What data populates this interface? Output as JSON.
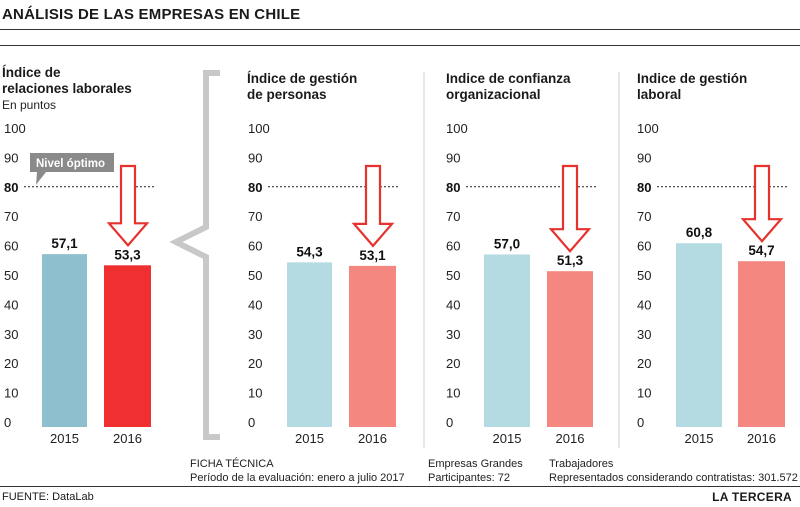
{
  "title": "ANÁLISIS DE LAS EMPRESAS EN CHILE",
  "optimal_label": "Nivel óptimo",
  "optimal_value": 80,
  "colors": {
    "bar_2015_main": "#8dbfce",
    "bar_2016_main": "#f03030",
    "bar_2015": "#b4dae2",
    "bar_2016": "#f48880",
    "arrow": "#e6322d",
    "arrow_fill": "#ffffff",
    "bracket": "#c8c8c8"
  },
  "chart_data": [
    {
      "type": "bar",
      "title_lines": [
        "Índice de",
        "relaciones laborales"
      ],
      "subtitle": "En puntos",
      "categories": [
        "2015",
        "2016"
      ],
      "values": [
        57.1,
        53.3
      ],
      "value_labels": [
        "57,1",
        "53,3"
      ],
      "yticks": [
        "100",
        "90",
        "80",
        "70",
        "60",
        "50",
        "40",
        "30",
        "20",
        "10",
        "0"
      ],
      "ylim": [
        0,
        100
      ]
    },
    {
      "type": "bar",
      "title_lines": [
        "Índice de gestión",
        "de personas"
      ],
      "categories": [
        "2015",
        "2016"
      ],
      "values": [
        54.3,
        53.1
      ],
      "value_labels": [
        "54,3",
        "53,1"
      ],
      "yticks": [
        "100",
        "90",
        "80",
        "70",
        "60",
        "50",
        "40",
        "30",
        "20",
        "10",
        "0"
      ],
      "ylim": [
        0,
        100
      ]
    },
    {
      "type": "bar",
      "title_lines": [
        "Indice de confianza",
        "organizacional"
      ],
      "categories": [
        "2015",
        "2016"
      ],
      "values": [
        57.0,
        51.3
      ],
      "value_labels": [
        "57,0",
        "51,3"
      ],
      "yticks": [
        "100",
        "90",
        "80",
        "70",
        "60",
        "50",
        "40",
        "30",
        "20",
        "10",
        "0"
      ],
      "ylim": [
        0,
        100
      ]
    },
    {
      "type": "bar",
      "title_lines": [
        "Indice de gestión",
        "laboral"
      ],
      "categories": [
        "2015",
        "2016"
      ],
      "values": [
        60.8,
        54.7
      ],
      "value_labels": [
        "60,8",
        "54,7"
      ],
      "yticks": [
        "100",
        "90",
        "80",
        "70",
        "60",
        "50",
        "40",
        "30",
        "20",
        "10",
        "0"
      ],
      "ylim": [
        0,
        100
      ]
    }
  ],
  "ficha": {
    "title": "FICHA TÉCNICA",
    "period": "Período de la evaluación: enero a julio 2017",
    "companies": "Empresas Grandes",
    "participants": "Participantes:  72",
    "workers": "Trabajadores",
    "represented": "Representados considerando contratistas:  301.572"
  },
  "source": "FUENTE: DataLab",
  "brand": "LA TERCERA"
}
